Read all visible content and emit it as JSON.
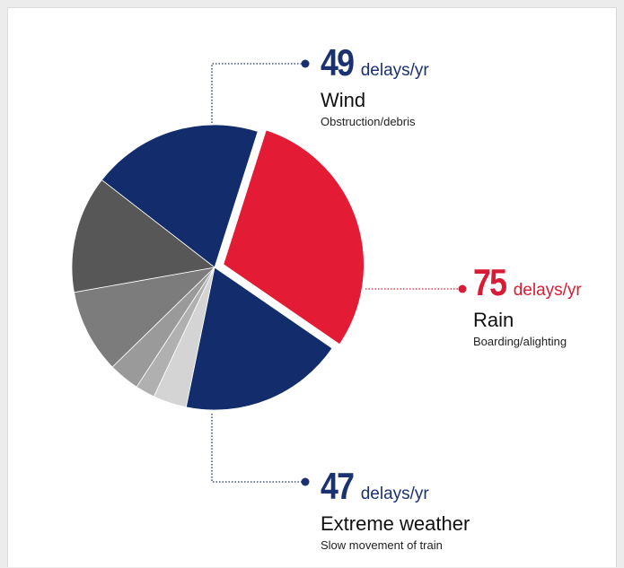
{
  "chart_data": {
    "type": "pie",
    "colors": {
      "navy": "#132c6c",
      "red": "#e31b35",
      "navy_label": "#1b3270",
      "red_label": "#d91c35",
      "grays": [
        "#d4d4d4",
        "#b0b0b0",
        "#9a9a9a",
        "#7c7c7c",
        "#575757"
      ]
    },
    "unlabeled_slices": [
      {
        "fraction": 0.038
      },
      {
        "fraction": 0.022
      },
      {
        "fraction": 0.035
      },
      {
        "fraction": 0.095
      },
      {
        "fraction": 0.133
      }
    ],
    "callouts": [
      {
        "key": "wind",
        "value": "49",
        "unit": "delays/yr",
        "category": "Wind",
        "cause": "Obstruction/debris",
        "color": "navy"
      },
      {
        "key": "rain",
        "value": "75",
        "unit": "delays/yr",
        "category": "Rain",
        "cause": "Boarding/alighting",
        "color": "red"
      },
      {
        "key": "extreme",
        "value": "47",
        "unit": "delays/yr",
        "category": "Extreme weather",
        "cause": "Slow movement of train",
        "color": "navy"
      }
    ]
  }
}
